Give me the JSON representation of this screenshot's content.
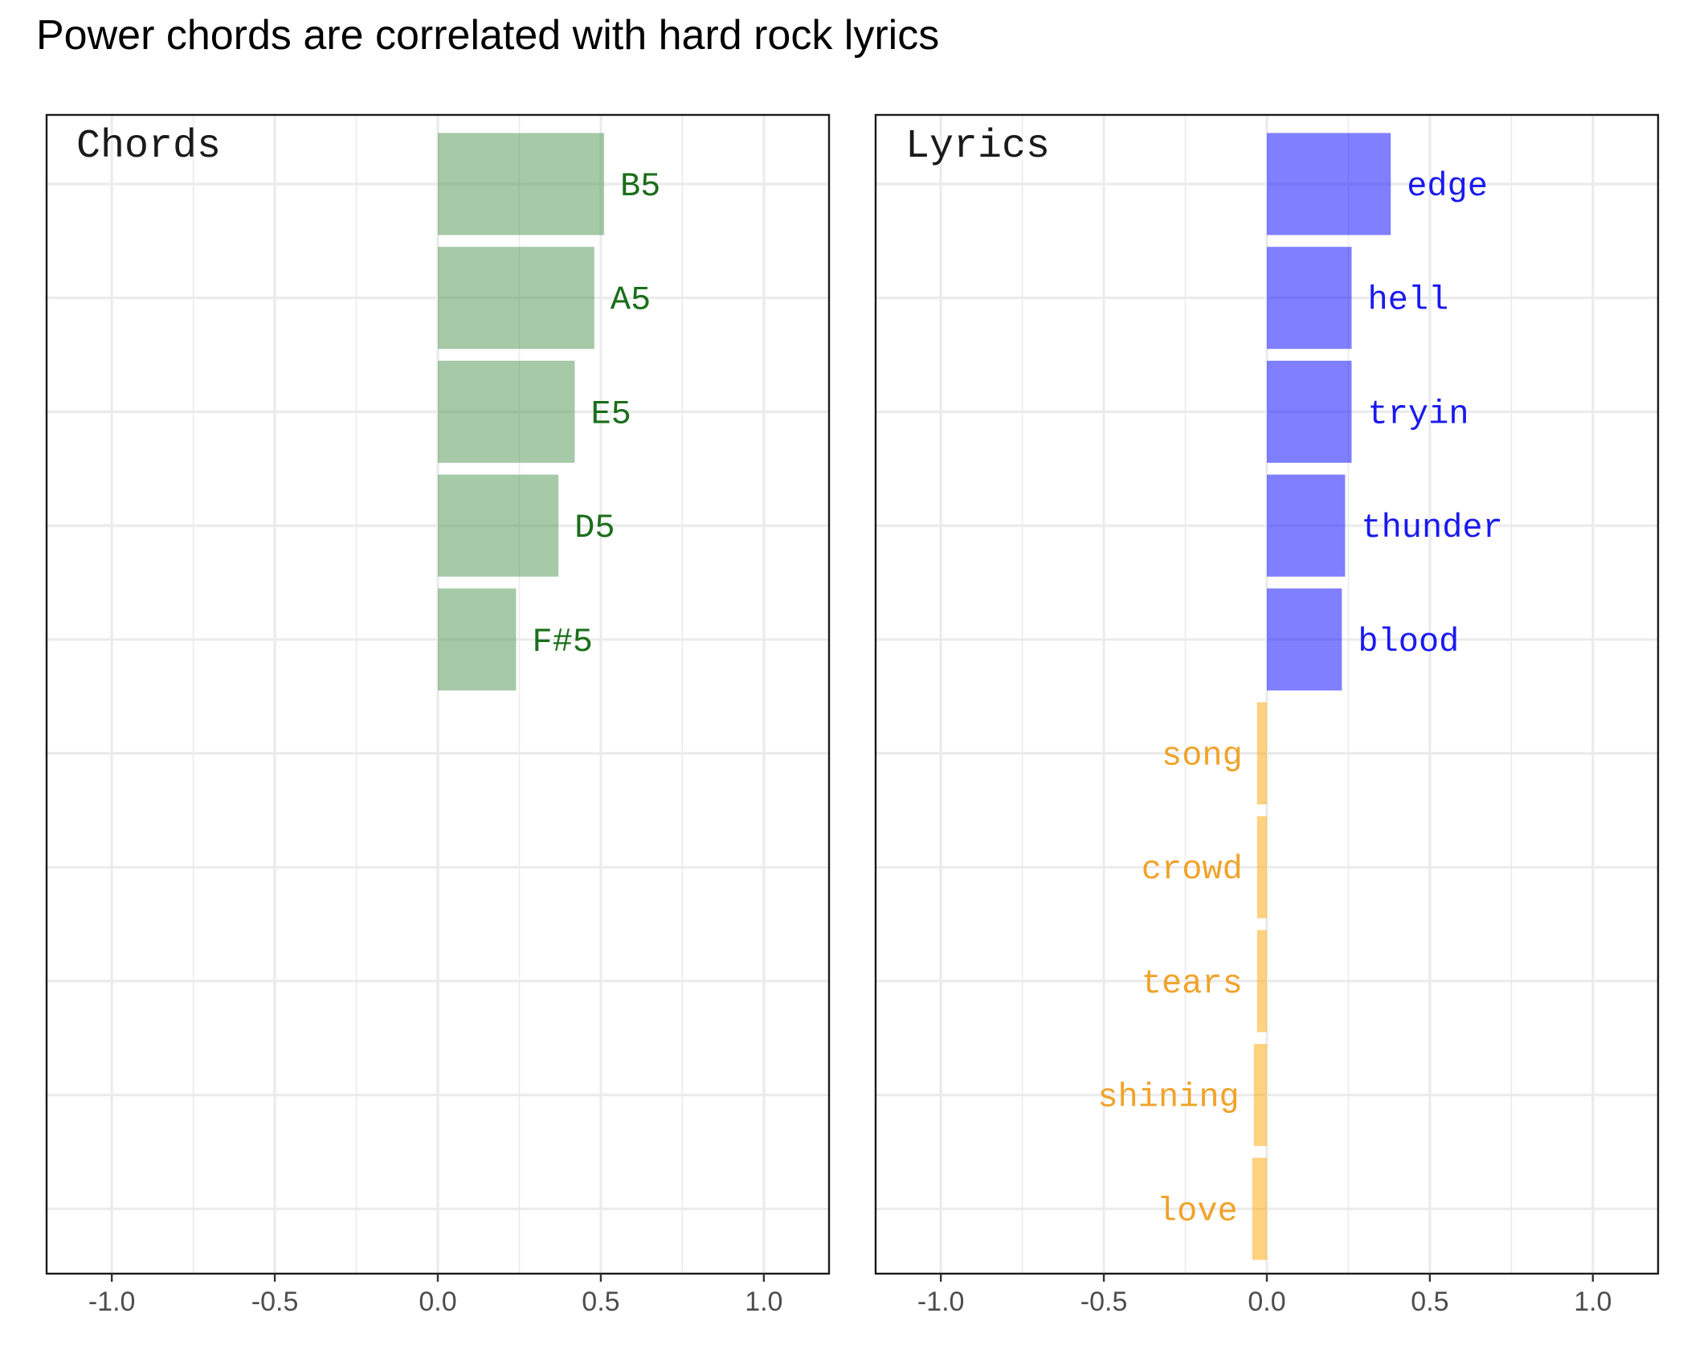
{
  "title": "Power chords are correlated with hard rock lyrics",
  "chart_data": [
    {
      "type": "bar",
      "orientation": "horizontal",
      "panel_label": "Chords",
      "xlim": [
        -1.2,
        1.2
      ],
      "xticks": [
        -1.0,
        -0.5,
        0.0,
        0.5,
        1.0
      ],
      "xtick_labels": [
        "-1.0",
        "-0.5",
        "0.0",
        "0.5",
        "1.0"
      ],
      "grid": true,
      "categories": [
        "B5",
        "A5",
        "E5",
        "D5",
        "F#5"
      ],
      "values": [
        0.51,
        0.48,
        0.42,
        0.37,
        0.24
      ],
      "color": "#4e944f"
    },
    {
      "type": "bar",
      "orientation": "horizontal",
      "panel_label": "Lyrics",
      "xlim": [
        -1.2,
        1.2
      ],
      "xticks": [
        -1.0,
        -0.5,
        0.0,
        0.5,
        1.0
      ],
      "xtick_labels": [
        "-1.0",
        "-0.5",
        "0.0",
        "0.5",
        "1.0"
      ],
      "grid": true,
      "categories": [
        "edge",
        "hell",
        "tryin",
        "thunder",
        "blood",
        "song",
        "crowd",
        "tears",
        "shining",
        "love"
      ],
      "values": [
        0.38,
        0.26,
        0.26,
        0.24,
        0.23,
        -0.03,
        -0.03,
        -0.03,
        -0.04,
        -0.045
      ],
      "positive_color": "#0000ff",
      "negative_color": "#ffa500"
    }
  ],
  "colors": {
    "chord_bar": "#4e944f",
    "chord_text": "#1a6e1a",
    "lyric_positive_bar": "#0000ff",
    "lyric_positive_text": "#1a1aee",
    "lyric_negative_bar": "#ffa500",
    "lyric_negative_text": "#f0a32a"
  }
}
